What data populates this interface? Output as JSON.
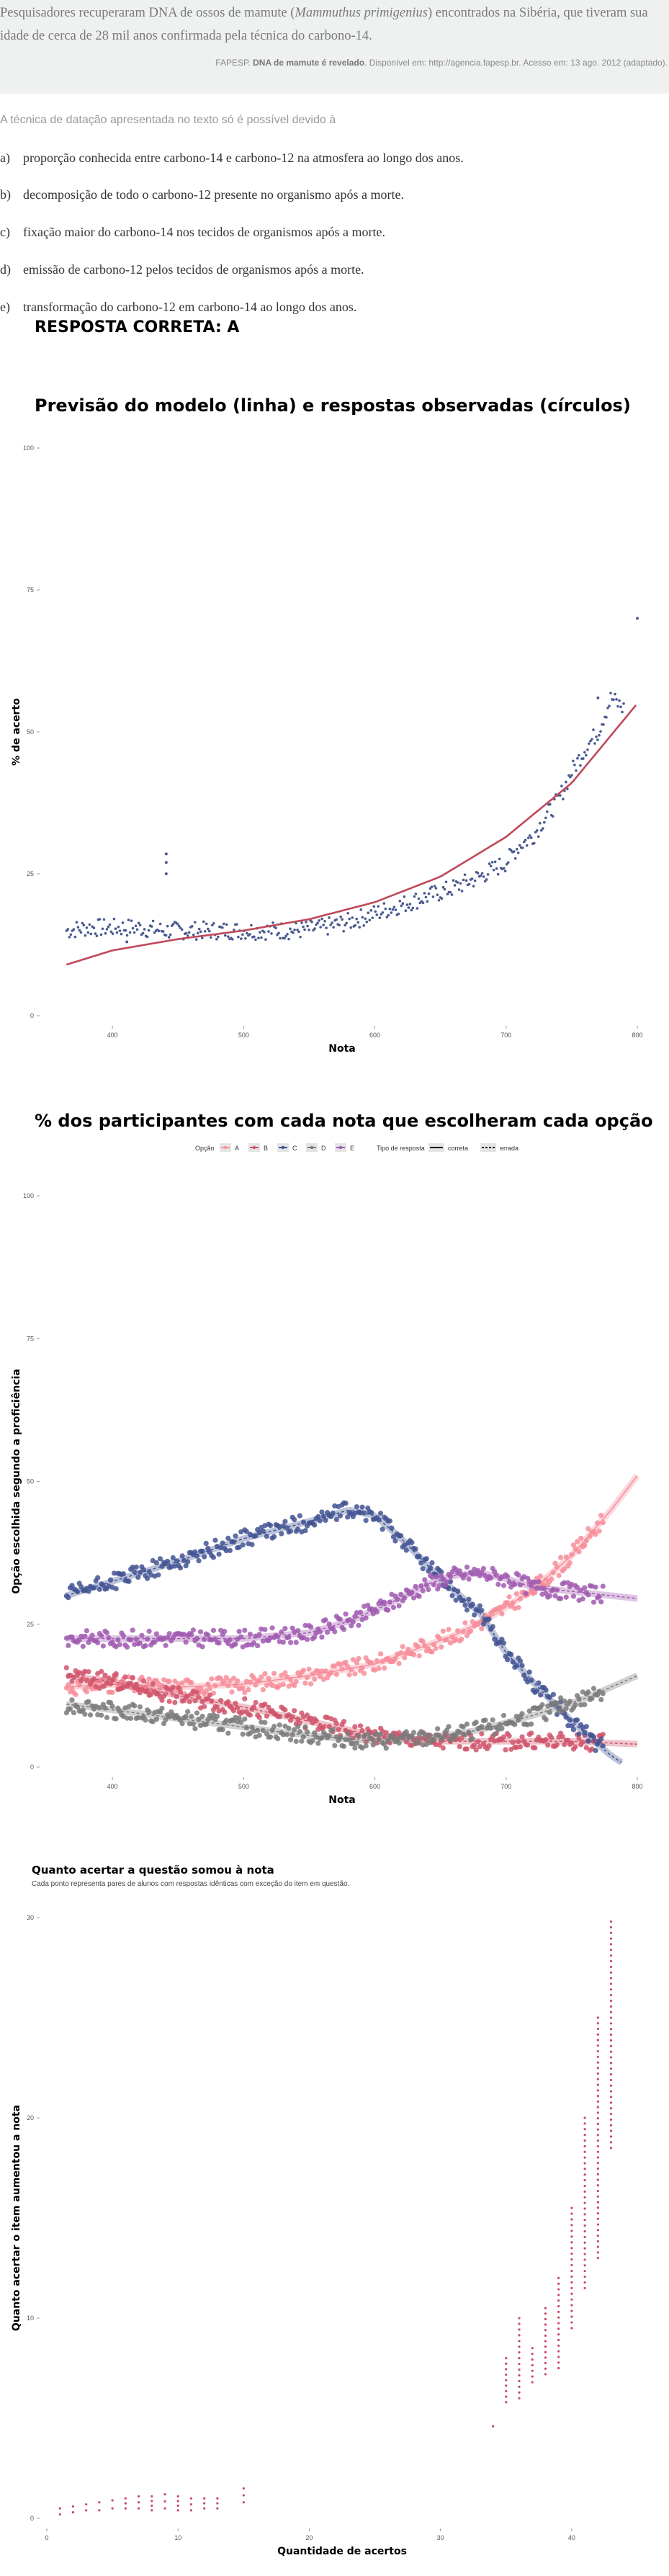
{
  "quote": {
    "text_before": "Pesquisadores recuperaram DNA de ossos de mamute (",
    "text_italic": "Mammuthus primigenius",
    "text_after": ") encontrados na Sibéria, que tiveram sua idade de cerca de 28 mil anos confirmada pela técnica do carbono-14.",
    "source_prefix": "FAPESP.",
    "source_title": "DNA de mamute é revelado",
    "source_rest": ". Disponível em: http://agencia.fapesp.br. Acesso em: 13 ago. 2012 (adaptado)."
  },
  "question": {
    "prompt": "A técnica de datação apresentada no texto só é possível devido à",
    "options": [
      {
        "letter": "a)",
        "text": "proporção conhecida entre carbono-14 e carbono-12 na atmosfera ao longo dos anos."
      },
      {
        "letter": "b)",
        "text": "decomposição de todo o carbono-12 presente no organismo após a morte."
      },
      {
        "letter": "c)",
        "text": "fixação maior do carbono-14 nos tecidos de organismos após a morte."
      },
      {
        "letter": "d)",
        "text": "emissão de carbono-12 pelos tecidos de organismos após a morte."
      },
      {
        "letter": "e)",
        "text": "transformação do carbono-12 em carbono-14 ao longo dos anos."
      }
    ],
    "answer_label": "RESPOSTA CORRETA: A"
  },
  "chart_data": [
    {
      "type": "scatter",
      "title": "Previsão do modelo (linha) e respostas observadas (círculos)",
      "xlabel": "Nota",
      "ylabel": "% de acerto",
      "xlim": [
        350,
        800
      ],
      "ylim": [
        0,
        100
      ],
      "x_ticks": [
        "400",
        "500",
        "600",
        "700",
        "800"
      ],
      "y_ticks": [
        "0",
        "25",
        "50",
        "75",
        "100"
      ],
      "series": [
        {
          "kind": "points",
          "color": "#4a5a8f",
          "x": [
            365,
            380,
            400,
            420,
            440,
            460,
            480,
            500,
            520,
            540,
            560,
            580,
            600,
            620,
            640,
            660,
            680,
            700,
            710,
            720,
            730,
            740,
            750,
            760,
            770,
            780,
            790,
            800
          ],
          "y": [
            15,
            15.5,
            15.5,
            15.5,
            15,
            15,
            15,
            15,
            15,
            15,
            15.5,
            16.5,
            18,
            19.5,
            21,
            22.5,
            24.5,
            27,
            30,
            31.5,
            35,
            38,
            43,
            47,
            50,
            56,
            54,
            70
          ],
          "outliers": [
            [
              441,
              27
            ],
            [
              441,
              28.5
            ],
            [
              441,
              25
            ],
            [
              411,
              13
            ],
            [
              800,
              70
            ],
            [
              770,
              56
            ]
          ]
        },
        {
          "kind": "line",
          "color": "#c0485a",
          "x": [
            365,
            400,
            450,
            500,
            550,
            600,
            650,
            700,
            750,
            800
          ],
          "y": [
            9,
            11.5,
            13.5,
            15,
            17,
            20,
            24.5,
            31.5,
            41,
            55
          ]
        }
      ]
    },
    {
      "type": "scatter",
      "title": "% dos participantes com cada nota que escolheram cada opção",
      "xlabel": "Nota",
      "ylabel": "Opção escolhida segundo a proficiência",
      "xlim": [
        350,
        800
      ],
      "ylim": [
        0,
        100
      ],
      "x_ticks": [
        "400",
        "500",
        "600",
        "700",
        "800"
      ],
      "y_ticks": [
        "0",
        "25",
        "50",
        "75",
        "100"
      ],
      "legend": {
        "option_title": "Opção",
        "options": [
          {
            "label": "A",
            "color": "#f78d9a"
          },
          {
            "label": "B",
            "color": "#d0546a"
          },
          {
            "label": "C",
            "color": "#435493"
          },
          {
            "label": "D",
            "color": "#7a7a7a"
          },
          {
            "label": "E",
            "color": "#a05ab0"
          }
        ],
        "type_title": "Tipo de resposta",
        "types": [
          {
            "label": "correta",
            "style": "solid"
          },
          {
            "label": "errada",
            "style": "dashed"
          }
        ]
      },
      "series": [
        {
          "name": "A",
          "color": "#f78d9a",
          "x": [
            365,
            400,
            450,
            500,
            550,
            600,
            630,
            660,
            690,
            720,
            750,
            780,
            800
          ],
          "y": [
            14,
            14.5,
            14,
            14.5,
            16,
            18,
            20.5,
            23,
            26.5,
            31,
            37,
            45,
            51
          ]
        },
        {
          "name": "B",
          "color": "#d0546a",
          "x": [
            365,
            400,
            450,
            500,
            550,
            600,
            650,
            700,
            750,
            800
          ],
          "y": [
            16,
            15,
            12.5,
            10.5,
            8,
            5.5,
            4.5,
            4.5,
            4.5,
            4
          ]
        },
        {
          "name": "C",
          "color": "#435493",
          "x": [
            365,
            400,
            450,
            500,
            550,
            580,
            600,
            620,
            650,
            680,
            700,
            720,
            750,
            780,
            790
          ],
          "y": [
            30,
            32.5,
            36,
            40,
            43,
            45,
            44,
            40,
            33,
            27,
            20,
            15,
            8,
            2,
            0.5
          ]
        },
        {
          "name": "D",
          "color": "#7a7a7a",
          "x": [
            365,
            400,
            450,
            500,
            550,
            600,
            640,
            680,
            720,
            760,
            800
          ],
          "y": [
            11,
            10,
            8.5,
            7,
            5.5,
            4.5,
            5,
            6.5,
            9,
            12,
            16
          ]
        },
        {
          "name": "E",
          "color": "#a05ab0",
          "x": [
            365,
            400,
            450,
            500,
            550,
            580,
            610,
            640,
            660,
            680,
            700,
            720,
            760,
            800
          ],
          "y": [
            22.5,
            22.5,
            22.5,
            22.5,
            23.5,
            25.5,
            28.5,
            32,
            33.5,
            34,
            33,
            31.5,
            30.5,
            29.5
          ]
        }
      ]
    },
    {
      "type": "scatter",
      "title": "Quanto acertar a questão somou à nota",
      "subtitle": "Cada ponto representa pares de alunos com respostas idênticas com exceção do item em questão.",
      "xlabel": "Quantidade de acertos",
      "ylabel": "Quanto acertar o item aumentou a nota",
      "xlim": [
        0,
        45
      ],
      "ylim": [
        0,
        30
      ],
      "x_ticks": [
        "0",
        "10",
        "20",
        "30",
        "40"
      ],
      "x_tick_values": [
        0,
        10,
        20,
        30,
        40
      ],
      "y_ticks": [
        "0",
        "10",
        "20",
        "30"
      ],
      "series": [
        {
          "kind": "columns",
          "color": "#c84a66",
          "x": [
            1,
            2,
            3,
            4,
            5,
            6,
            7,
            8,
            9,
            10,
            11,
            12,
            13,
            15
          ],
          "ymin": [
            0.2,
            0.3,
            0.4,
            0.4,
            0.5,
            0.5,
            0.5,
            0.4,
            0.5,
            0.4,
            0.4,
            0.5,
            0.5,
            0.8
          ],
          "ymax": [
            0.5,
            0.6,
            0.7,
            0.8,
            0.9,
            1.0,
            1.1,
            1.1,
            1.2,
            1.1,
            1.0,
            1.0,
            1.0,
            1.5
          ]
        },
        {
          "kind": "columns",
          "color": "#c84a66",
          "x": [
            34,
            35,
            36,
            37,
            38,
            39,
            40,
            41,
            42,
            43
          ],
          "ymin": [
            4.6,
            5.8,
            6.0,
            6.8,
            7.2,
            7.5,
            9.5,
            11.5,
            13.0,
            18.5
          ],
          "ymax": [
            4.6,
            8.0,
            10.0,
            8.5,
            10.5,
            12.0,
            15.5,
            20.0,
            25.0,
            29.8
          ]
        }
      ]
    }
  ]
}
